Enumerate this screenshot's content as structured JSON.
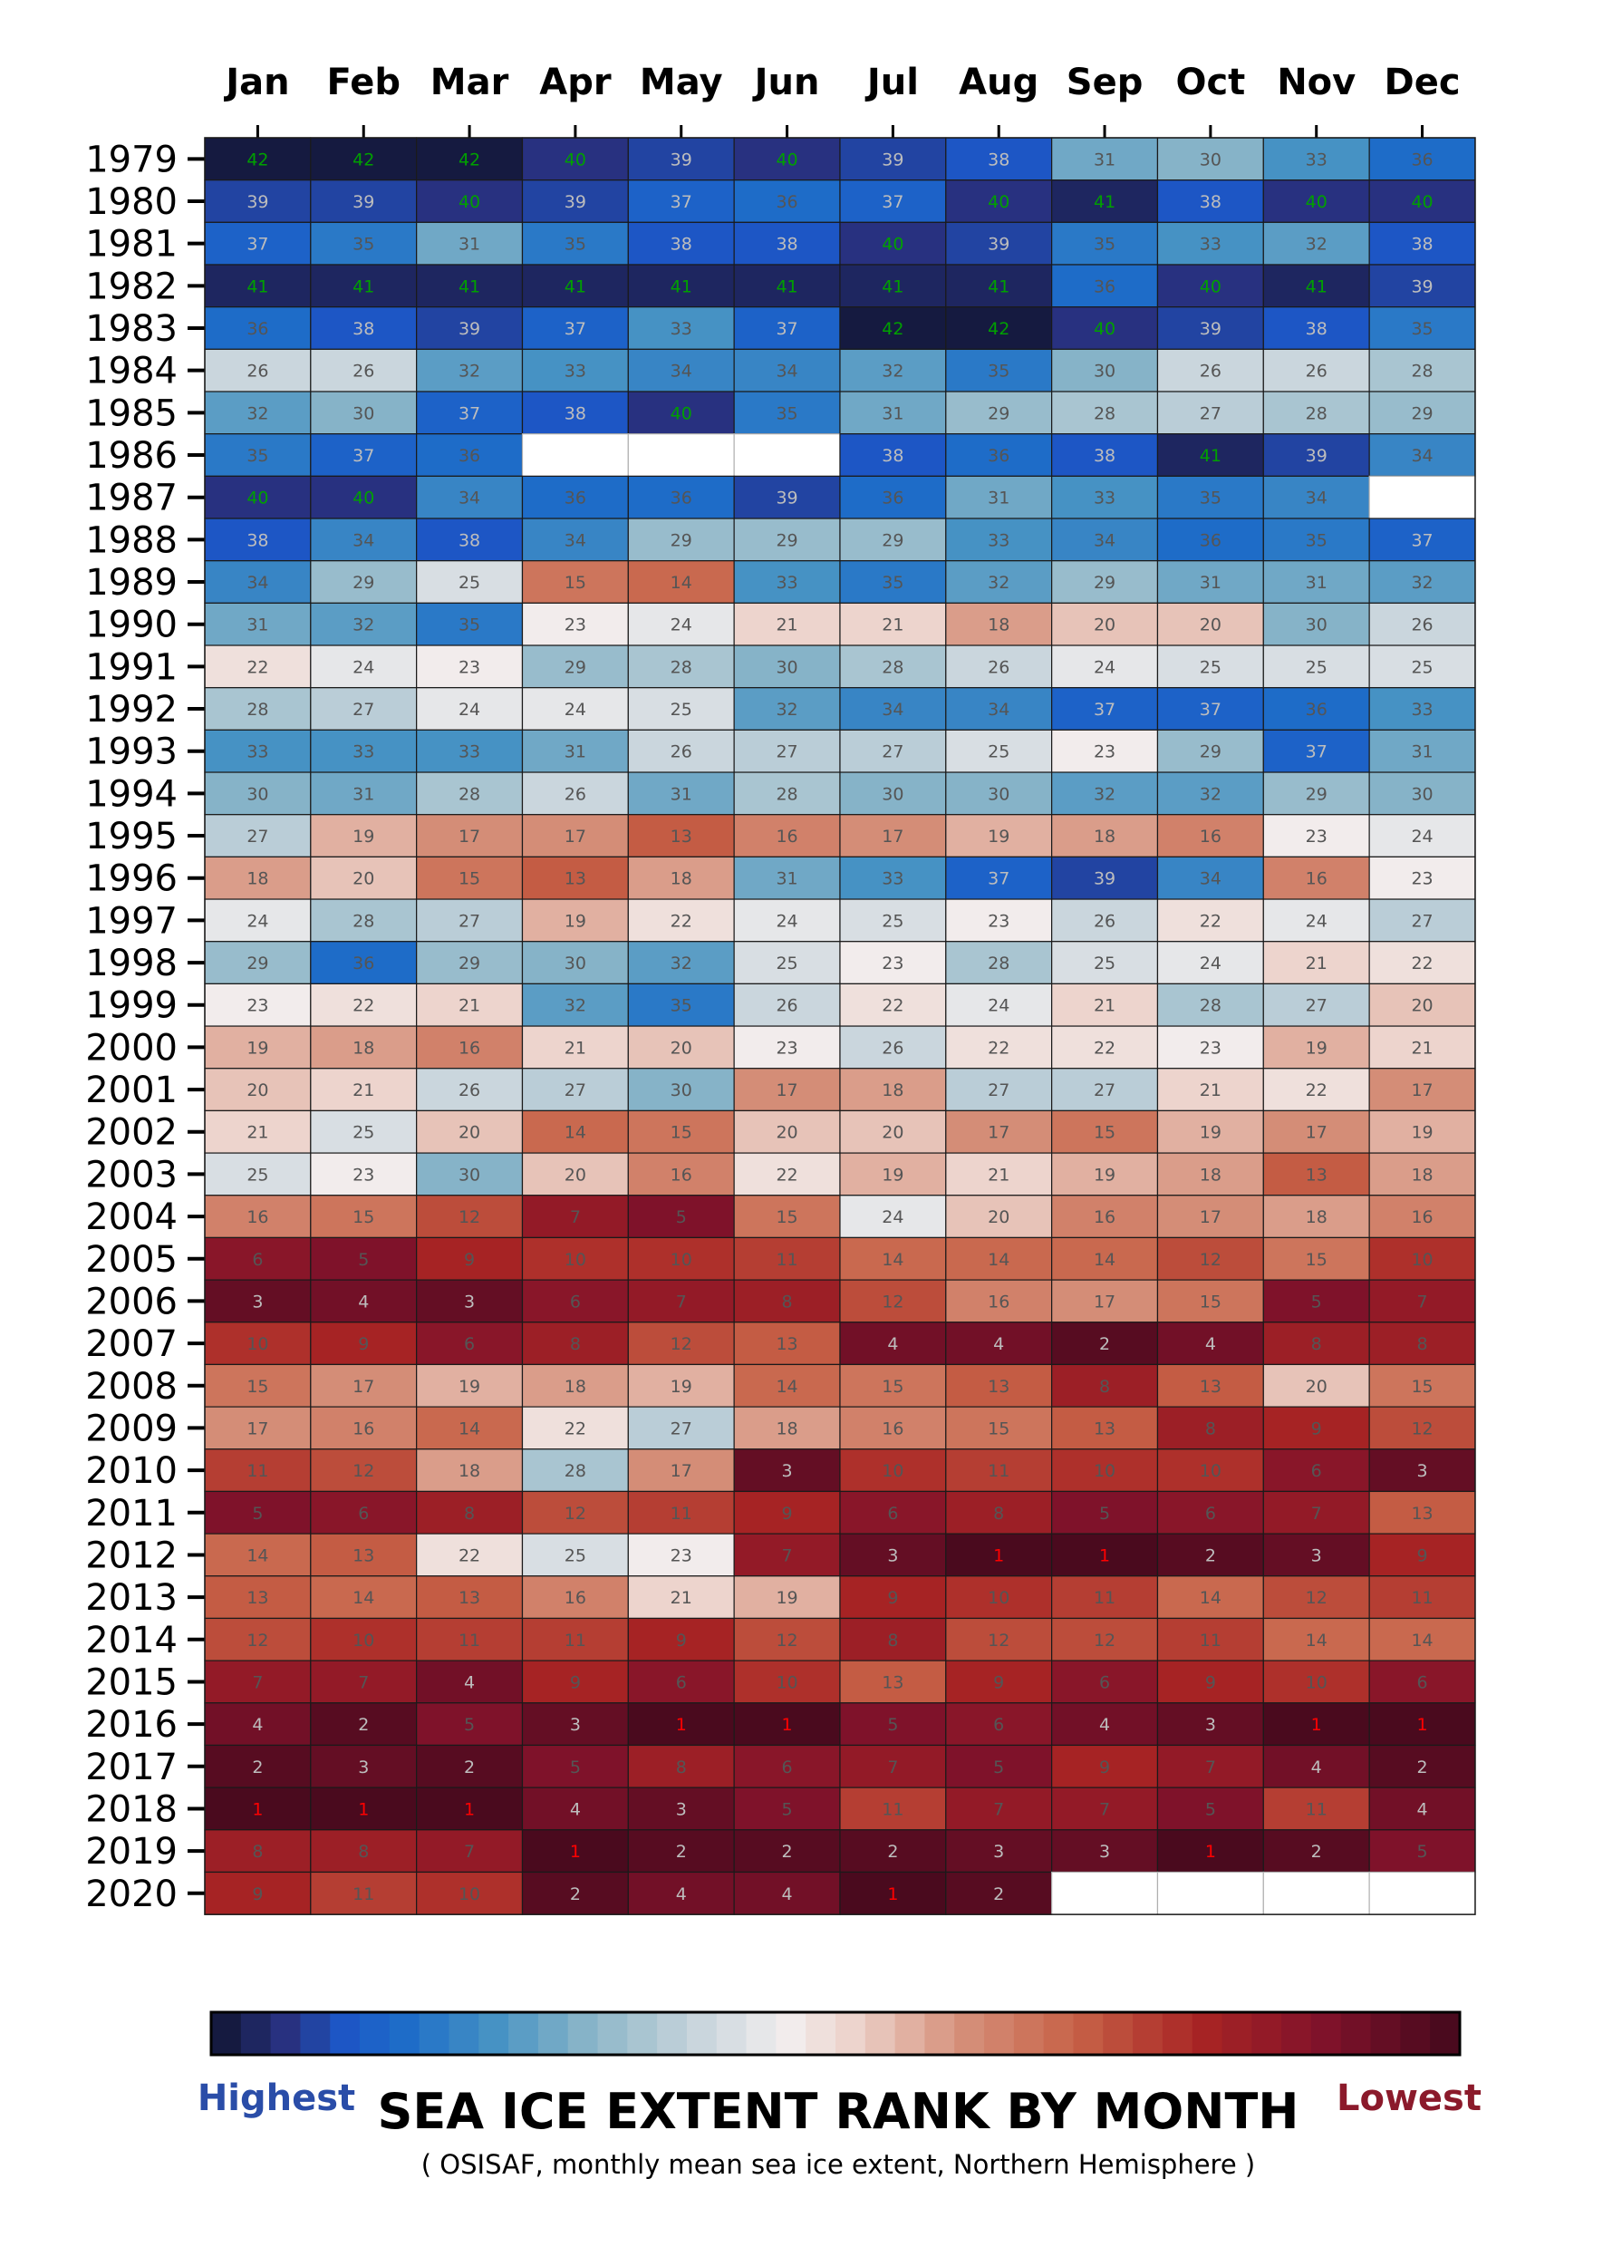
{
  "chart_data": {
    "type": "heatmap",
    "title": "SEA ICE EXTENT RANK BY MONTH",
    "subtitle": "( OSISAF, monthly mean sea ice extent, Northern Hemisphere )",
    "months": [
      "Jan",
      "Feb",
      "Mar",
      "Apr",
      "May",
      "Jun",
      "Jul",
      "Aug",
      "Sep",
      "Oct",
      "Nov",
      "Dec"
    ],
    "years": [
      "1979",
      "1980",
      "1981",
      "1982",
      "1983",
      "1984",
      "1985",
      "1986",
      "1987",
      "1988",
      "1989",
      "1990",
      "1991",
      "1992",
      "1993",
      "1994",
      "1995",
      "1996",
      "1997",
      "1998",
      "1999",
      "2000",
      "2001",
      "2002",
      "2003",
      "2004",
      "2005",
      "2006",
      "2007",
      "2008",
      "2009",
      "2010",
      "2011",
      "2012",
      "2013",
      "2014",
      "2015",
      "2016",
      "2017",
      "2018",
      "2019",
      "2020"
    ],
    "values": [
      [
        42,
        42,
        42,
        40,
        39,
        40,
        39,
        38,
        31,
        30,
        33,
        36
      ],
      [
        39,
        39,
        40,
        39,
        37,
        36,
        37,
        40,
        41,
        38,
        40,
        40
      ],
      [
        37,
        35,
        31,
        35,
        38,
        38,
        40,
        39,
        35,
        33,
        32,
        38
      ],
      [
        41,
        41,
        41,
        41,
        41,
        41,
        41,
        41,
        36,
        40,
        41,
        39
      ],
      [
        36,
        38,
        39,
        37,
        33,
        37,
        42,
        42,
        40,
        39,
        38,
        35
      ],
      [
        26,
        26,
        32,
        33,
        34,
        34,
        32,
        35,
        30,
        26,
        26,
        28
      ],
      [
        32,
        30,
        37,
        38,
        40,
        35,
        31,
        29,
        28,
        27,
        28,
        29
      ],
      [
        35,
        37,
        36,
        null,
        null,
        null,
        38,
        36,
        38,
        41,
        39,
        34
      ],
      [
        40,
        40,
        34,
        36,
        36,
        39,
        36,
        31,
        33,
        35,
        34,
        null
      ],
      [
        38,
        34,
        38,
        34,
        29,
        29,
        29,
        33,
        34,
        36,
        35,
        37
      ],
      [
        34,
        29,
        25,
        15,
        14,
        33,
        35,
        32,
        29,
        31,
        31,
        32
      ],
      [
        31,
        32,
        35,
        23,
        24,
        21,
        21,
        18,
        20,
        20,
        30,
        26
      ],
      [
        22,
        24,
        23,
        29,
        28,
        30,
        28,
        26,
        24,
        25,
        25,
        25
      ],
      [
        28,
        27,
        24,
        24,
        25,
        32,
        34,
        34,
        37,
        37,
        36,
        33
      ],
      [
        33,
        33,
        33,
        31,
        26,
        27,
        27,
        25,
        23,
        29,
        37,
        31
      ],
      [
        30,
        31,
        28,
        26,
        31,
        28,
        30,
        30,
        32,
        32,
        29,
        30
      ],
      [
        27,
        19,
        17,
        17,
        13,
        16,
        17,
        19,
        18,
        16,
        23,
        24
      ],
      [
        18,
        20,
        15,
        13,
        18,
        31,
        33,
        37,
        39,
        34,
        16,
        23
      ],
      [
        24,
        28,
        27,
        19,
        22,
        24,
        25,
        23,
        26,
        22,
        24,
        27
      ],
      [
        29,
        36,
        29,
        30,
        32,
        25,
        23,
        28,
        25,
        24,
        21,
        22
      ],
      [
        23,
        22,
        21,
        32,
        35,
        26,
        22,
        24,
        21,
        28,
        27,
        20
      ],
      [
        19,
        18,
        16,
        21,
        20,
        23,
        26,
        22,
        22,
        23,
        19,
        21
      ],
      [
        20,
        21,
        26,
        27,
        30,
        17,
        18,
        27,
        27,
        21,
        22,
        17
      ],
      [
        21,
        25,
        20,
        14,
        15,
        20,
        20,
        17,
        15,
        19,
        17,
        19
      ],
      [
        25,
        23,
        30,
        20,
        16,
        22,
        19,
        21,
        19,
        18,
        13,
        18
      ],
      [
        16,
        15,
        12,
        7,
        5,
        15,
        24,
        20,
        16,
        17,
        18,
        16
      ],
      [
        6,
        5,
        9,
        10,
        10,
        11,
        14,
        14,
        14,
        12,
        15,
        10
      ],
      [
        3,
        4,
        3,
        6,
        7,
        8,
        12,
        16,
        17,
        15,
        5,
        7
      ],
      [
        10,
        9,
        6,
        8,
        12,
        13,
        4,
        4,
        2,
        4,
        8,
        8
      ],
      [
        15,
        17,
        19,
        18,
        19,
        14,
        15,
        13,
        8,
        13,
        20,
        15
      ],
      [
        17,
        16,
        14,
        22,
        27,
        18,
        16,
        15,
        13,
        8,
        9,
        12
      ],
      [
        11,
        12,
        18,
        28,
        17,
        3,
        10,
        11,
        10,
        10,
        6,
        3
      ],
      [
        5,
        6,
        8,
        12,
        11,
        9,
        6,
        8,
        5,
        6,
        7,
        13
      ],
      [
        14,
        13,
        22,
        25,
        23,
        7,
        3,
        1,
        1,
        2,
        3,
        9
      ],
      [
        13,
        14,
        13,
        16,
        21,
        19,
        9,
        10,
        11,
        14,
        12,
        11
      ],
      [
        12,
        10,
        11,
        11,
        9,
        12,
        8,
        12,
        12,
        11,
        14,
        14
      ],
      [
        7,
        7,
        4,
        9,
        6,
        10,
        13,
        9,
        6,
        9,
        10,
        6
      ],
      [
        4,
        2,
        5,
        3,
        1,
        1,
        5,
        6,
        4,
        3,
        1,
        1
      ],
      [
        2,
        3,
        2,
        5,
        8,
        6,
        7,
        5,
        9,
        7,
        4,
        2
      ],
      [
        1,
        1,
        1,
        4,
        3,
        5,
        11,
        7,
        7,
        5,
        11,
        4
      ],
      [
        8,
        8,
        7,
        1,
        2,
        2,
        2,
        3,
        3,
        1,
        2,
        5
      ],
      [
        9,
        11,
        10,
        2,
        4,
        4,
        1,
        2,
        null,
        null,
        null,
        null
      ]
    ],
    "value_range": [
      1,
      42
    ],
    "colorbar": {
      "low_label": "Highest",
      "high_label": "Lowest",
      "colors": {
        "highest": "#151a40",
        "mid": "#f4eeee",
        "lowest": "#4a0a1e"
      }
    },
    "annotations": {
      "rank_1_text_color": "#ff0000",
      "top_three_text_color": "#00a000"
    }
  }
}
